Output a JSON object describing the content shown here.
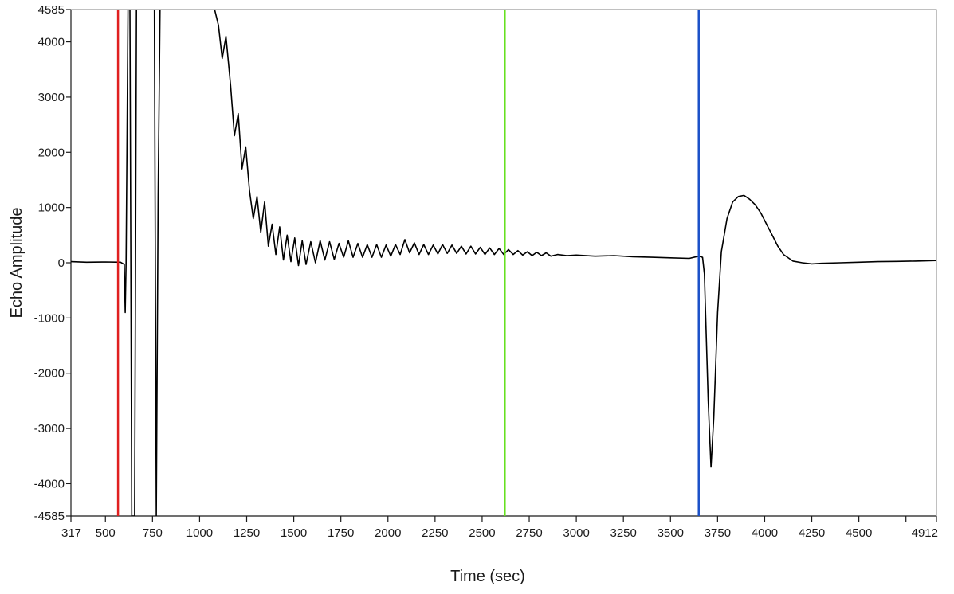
{
  "chart_data": {
    "type": "line",
    "xlabel": "Time (sec)",
    "ylabel": "Echo Amplitude",
    "xlim": [
      317,
      4912
    ],
    "ylim": [
      -4585,
      4585
    ],
    "x_ticks": [
      317,
      500,
      750,
      1000,
      1250,
      1500,
      1750,
      2000,
      2250,
      2500,
      2750,
      3000,
      3250,
      3500,
      3750,
      4000,
      4250,
      4500,
      4912
    ],
    "x_tick_labels": [
      "317",
      "500",
      "750",
      "1000",
      "1250",
      "1500",
      "1750",
      "2000",
      "2250",
      "2500",
      "2750",
      "3000",
      "3250",
      "3500",
      "3750",
      "4000",
      "4250",
      "4500",
      "4912"
    ],
    "x_minor_ticks": [
      4750
    ],
    "y_ticks": [
      -4585,
      -4000,
      -3000,
      -2000,
      -1000,
      0,
      1000,
      2000,
      3000,
      4000,
      4585
    ],
    "y_tick_labels": [
      "-4585",
      "-4000",
      "-3000",
      "-2000",
      "-1000",
      "0",
      "1000",
      "2000",
      "3000",
      "4000",
      "4585"
    ],
    "grid": false,
    "legend": "none",
    "cursors": [
      {
        "x": 567,
        "color": "#e02020"
      },
      {
        "x": 2620,
        "color": "#66e020"
      },
      {
        "x": 3650,
        "color": "#1a50c8"
      }
    ],
    "series": [
      {
        "color": "#000000",
        "points": [
          [
            317,
            20
          ],
          [
            400,
            10
          ],
          [
            500,
            15
          ],
          [
            580,
            10
          ],
          [
            600,
            -30
          ],
          [
            605,
            -900
          ],
          [
            610,
            0
          ],
          [
            620,
            4585
          ],
          [
            630,
            4585
          ],
          [
            640,
            -4585
          ],
          [
            655,
            -4585
          ],
          [
            665,
            4585
          ],
          [
            760,
            4585
          ],
          [
            770,
            -4585
          ],
          [
            780,
            1200
          ],
          [
            790,
            4585
          ],
          [
            1080,
            4585
          ],
          [
            1100,
            4300
          ],
          [
            1120,
            3700
          ],
          [
            1140,
            4100
          ],
          [
            1165,
            3200
          ],
          [
            1185,
            2300
          ],
          [
            1205,
            2700
          ],
          [
            1225,
            1700
          ],
          [
            1245,
            2100
          ],
          [
            1265,
            1300
          ],
          [
            1285,
            800
          ],
          [
            1305,
            1200
          ],
          [
            1325,
            550
          ],
          [
            1345,
            1100
          ],
          [
            1365,
            300
          ],
          [
            1385,
            700
          ],
          [
            1405,
            150
          ],
          [
            1425,
            650
          ],
          [
            1445,
            50
          ],
          [
            1465,
            500
          ],
          [
            1485,
            20
          ],
          [
            1505,
            450
          ],
          [
            1525,
            -50
          ],
          [
            1545,
            400
          ],
          [
            1565,
            -30
          ],
          [
            1590,
            380
          ],
          [
            1615,
            0
          ],
          [
            1640,
            400
          ],
          [
            1665,
            50
          ],
          [
            1690,
            380
          ],
          [
            1715,
            60
          ],
          [
            1740,
            350
          ],
          [
            1765,
            100
          ],
          [
            1790,
            400
          ],
          [
            1815,
            100
          ],
          [
            1840,
            350
          ],
          [
            1865,
            100
          ],
          [
            1890,
            330
          ],
          [
            1915,
            100
          ],
          [
            1940,
            330
          ],
          [
            1965,
            100
          ],
          [
            1990,
            320
          ],
          [
            2015,
            120
          ],
          [
            2040,
            330
          ],
          [
            2065,
            150
          ],
          [
            2090,
            420
          ],
          [
            2115,
            180
          ],
          [
            2140,
            360
          ],
          [
            2165,
            150
          ],
          [
            2190,
            330
          ],
          [
            2215,
            150
          ],
          [
            2240,
            320
          ],
          [
            2265,
            160
          ],
          [
            2290,
            330
          ],
          [
            2315,
            170
          ],
          [
            2340,
            320
          ],
          [
            2365,
            170
          ],
          [
            2390,
            300
          ],
          [
            2415,
            160
          ],
          [
            2440,
            300
          ],
          [
            2465,
            160
          ],
          [
            2490,
            280
          ],
          [
            2515,
            150
          ],
          [
            2540,
            270
          ],
          [
            2565,
            150
          ],
          [
            2590,
            260
          ],
          [
            2615,
            150
          ],
          [
            2640,
            240
          ],
          [
            2665,
            150
          ],
          [
            2690,
            220
          ],
          [
            2715,
            140
          ],
          [
            2740,
            200
          ],
          [
            2765,
            130
          ],
          [
            2790,
            190
          ],
          [
            2815,
            130
          ],
          [
            2840,
            180
          ],
          [
            2865,
            120
          ],
          [
            2900,
            150
          ],
          [
            2950,
            130
          ],
          [
            3000,
            140
          ],
          [
            3100,
            120
          ],
          [
            3200,
            130
          ],
          [
            3300,
            110
          ],
          [
            3400,
            100
          ],
          [
            3500,
            90
          ],
          [
            3600,
            80
          ],
          [
            3650,
            120
          ],
          [
            3670,
            100
          ],
          [
            3680,
            -200
          ],
          [
            3700,
            -2500
          ],
          [
            3715,
            -3700
          ],
          [
            3730,
            -2800
          ],
          [
            3750,
            -900
          ],
          [
            3770,
            200
          ],
          [
            3800,
            800
          ],
          [
            3830,
            1100
          ],
          [
            3860,
            1200
          ],
          [
            3890,
            1220
          ],
          [
            3920,
            1150
          ],
          [
            3950,
            1050
          ],
          [
            3980,
            900
          ],
          [
            4010,
            700
          ],
          [
            4040,
            500
          ],
          [
            4070,
            300
          ],
          [
            4100,
            150
          ],
          [
            4150,
            30
          ],
          [
            4200,
            0
          ],
          [
            4250,
            -20
          ],
          [
            4300,
            -10
          ],
          [
            4400,
            0
          ],
          [
            4500,
            10
          ],
          [
            4600,
            20
          ],
          [
            4700,
            25
          ],
          [
            4800,
            30
          ],
          [
            4912,
            40
          ]
        ]
      }
    ]
  }
}
